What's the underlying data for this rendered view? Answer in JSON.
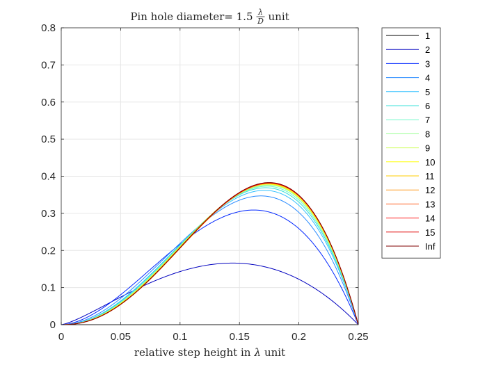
{
  "chart_data": {
    "type": "line",
    "title": {
      "prefix": "Pin hole diameter= 1.5",
      "frac_num": "λ",
      "frac_den": "D",
      "suffix": "unit"
    },
    "xlabel": {
      "prefix": "relative step height in",
      "symbol": "λ",
      "suffix": "unit"
    },
    "ylabel": "",
    "xlim": [
      0,
      0.25
    ],
    "ylim": [
      0,
      0.8
    ],
    "xticks": [
      0,
      0.05,
      0.1,
      0.15,
      0.2,
      0.25
    ],
    "xtick_labels": [
      "0",
      "0.05",
      "0.1",
      "0.15",
      "0.2",
      "0.25"
    ],
    "yticks": [
      0,
      0.1,
      0.2,
      0.3,
      0.4,
      0.5,
      0.6,
      0.7,
      0.8
    ],
    "ytick_labels": [
      "0",
      "0.1",
      "0.2",
      "0.3",
      "0.4",
      "0.5",
      "0.6",
      "0.7",
      "0.8"
    ],
    "grid": true,
    "legend_position": "outside-right",
    "series": [
      {
        "name": "1",
        "color": "#000000",
        "peak_x": 0.175,
        "peak_y": 0.0
      },
      {
        "name": "2",
        "color": "#0000bf",
        "peak_x": 0.144,
        "peak_y": 0.166
      },
      {
        "name": "3",
        "color": "#0026ff",
        "peak_x": 0.162,
        "peak_y": 0.309
      },
      {
        "name": "4",
        "color": "#2a8cff",
        "peak_x": 0.168,
        "peak_y": 0.347
      },
      {
        "name": "5",
        "color": "#30c0ff",
        "peak_x": 0.171,
        "peak_y": 0.362
      },
      {
        "name": "6",
        "color": "#38e0d8",
        "peak_x": 0.172,
        "peak_y": 0.369
      },
      {
        "name": "7",
        "color": "#70f8c8",
        "peak_x": 0.173,
        "peak_y": 0.373
      },
      {
        "name": "8",
        "color": "#98ff90",
        "peak_x": 0.174,
        "peak_y": 0.376
      },
      {
        "name": "9",
        "color": "#d0ff60",
        "peak_x": 0.174,
        "peak_y": 0.378
      },
      {
        "name": "10",
        "color": "#ffff00",
        "peak_x": 0.174,
        "peak_y": 0.379
      },
      {
        "name": "11",
        "color": "#ffcc00",
        "peak_x": 0.175,
        "peak_y": 0.38
      },
      {
        "name": "12",
        "color": "#ff9a20",
        "peak_x": 0.175,
        "peak_y": 0.381
      },
      {
        "name": "13",
        "color": "#ff6020",
        "peak_x": 0.175,
        "peak_y": 0.381
      },
      {
        "name": "14",
        "color": "#ff2020",
        "peak_x": 0.175,
        "peak_y": 0.382
      },
      {
        "name": "15",
        "color": "#e00000",
        "peak_x": 0.175,
        "peak_y": 0.382
      },
      {
        "name": "Inf",
        "color": "#800000",
        "peak_x": 0.175,
        "peak_y": 0.383
      }
    ]
  }
}
